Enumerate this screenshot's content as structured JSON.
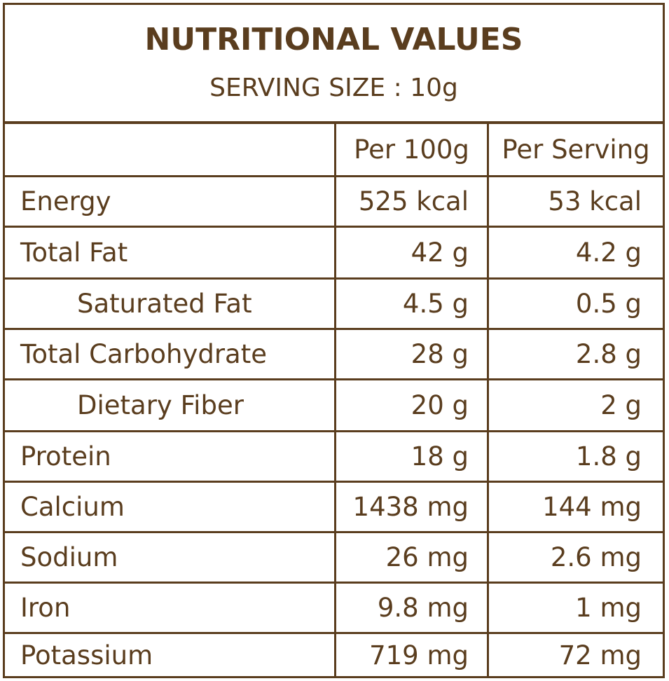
{
  "title": "NUTRITIONAL VALUES",
  "serving_size": "SERVING SIZE : 10g",
  "columns": [
    "",
    "Per 100g",
    "Per Serving"
  ],
  "rows": [
    {
      "nutrient": "Energy",
      "per_100g": "525 kcal",
      "per_serving": "53 kcal",
      "indent": false
    },
    {
      "nutrient": "Total Fat",
      "per_100g": "42 g",
      "per_serving": "4.2 g",
      "indent": false
    },
    {
      "nutrient": "Saturated Fat",
      "per_100g": "4.5 g",
      "per_serving": "0.5 g",
      "indent": true
    },
    {
      "nutrient": "Total Carbohydrate",
      "per_100g": "28 g",
      "per_serving": "2.8 g",
      "indent": false
    },
    {
      "nutrient": "Dietary Fiber",
      "per_100g": "20 g",
      "per_serving": "2 g",
      "indent": true
    },
    {
      "nutrient": "Protein",
      "per_100g": "18 g",
      "per_serving": "1.8 g",
      "indent": false
    },
    {
      "nutrient": "Calcium",
      "per_100g": "1438 mg",
      "per_serving": "144 mg",
      "indent": false
    },
    {
      "nutrient": "Sodium",
      "per_100g": "26 mg",
      "per_serving": "2.6 mg",
      "indent": false
    },
    {
      "nutrient": "Iron",
      "per_100g": "9.8 mg",
      "per_serving": "1 mg",
      "indent": false
    },
    {
      "nutrient": "Potassium",
      "per_100g": "719 mg",
      "per_serving": "72 mg",
      "indent": false
    }
  ],
  "colors": {
    "brown": "#5a3d1e",
    "background": "#ffffff"
  }
}
